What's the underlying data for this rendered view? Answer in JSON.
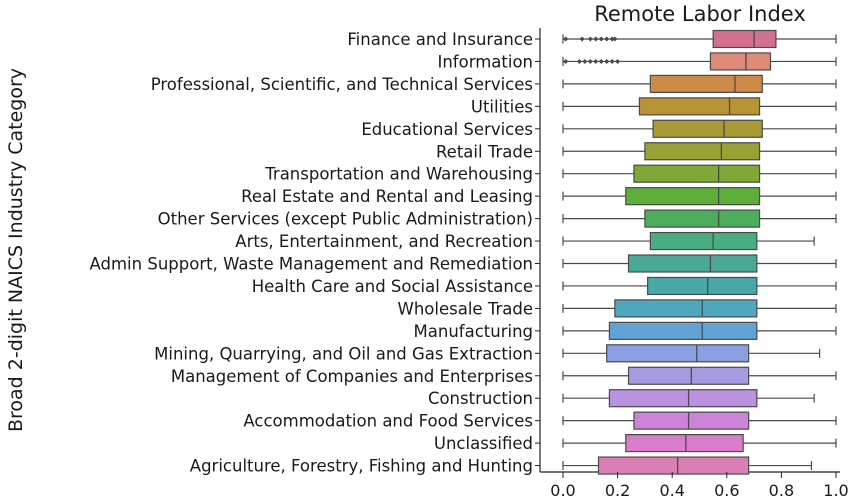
{
  "chart_data": {
    "type": "box",
    "title": "Remote Labor Index",
    "xlabel": "",
    "ylabel": "Broad 2-digit NAICS Industry  Category",
    "xlim": [
      0.0,
      1.0
    ],
    "xticks": [
      "0.0",
      "0.2",
      "0.4",
      "0.6",
      "0.8",
      "1.0"
    ],
    "grid": false,
    "orientation": "horizontal",
    "categories": [
      {
        "name": "Finance and Insurance",
        "color": "#d4708f",
        "min": 0.0,
        "q1": 0.55,
        "median": 0.7,
        "q3": 0.78,
        "max": 1.0,
        "outliers": [
          0.01,
          0.07,
          0.1,
          0.12,
          0.14,
          0.16,
          0.18,
          0.19
        ]
      },
      {
        "name": "Information",
        "color": "#dd8a79",
        "min": 0.0,
        "q1": 0.54,
        "median": 0.67,
        "q3": 0.76,
        "max": 1.0,
        "outliers": [
          0.01,
          0.06,
          0.08,
          0.1,
          0.12,
          0.14,
          0.16,
          0.18,
          0.2
        ]
      },
      {
        "name": "Professional, Scientific, and Technical Services",
        "color": "#cc8c48",
        "min": 0.0,
        "q1": 0.32,
        "median": 0.63,
        "q3": 0.73,
        "max": 1.0,
        "outliers": []
      },
      {
        "name": "Utilities",
        "color": "#b89436",
        "min": 0.0,
        "q1": 0.28,
        "median": 0.61,
        "q3": 0.72,
        "max": 1.0,
        "outliers": []
      },
      {
        "name": "Educational Services",
        "color": "#a99a35",
        "min": 0.0,
        "q1": 0.33,
        "median": 0.59,
        "q3": 0.73,
        "max": 1.0,
        "outliers": []
      },
      {
        "name": "Retail Trade",
        "color": "#98a235",
        "min": 0.0,
        "q1": 0.3,
        "median": 0.58,
        "q3": 0.72,
        "max": 1.0,
        "outliers": []
      },
      {
        "name": "Transportation and Warehousing",
        "color": "#80a836",
        "min": 0.0,
        "q1": 0.26,
        "median": 0.57,
        "q3": 0.72,
        "max": 1.0,
        "outliers": []
      },
      {
        "name": "Real Estate and Rental and Leasing",
        "color": "#5eae3a",
        "min": 0.0,
        "q1": 0.23,
        "median": 0.57,
        "q3": 0.72,
        "max": 1.0,
        "outliers": []
      },
      {
        "name": "Other Services (except Public Administration)",
        "color": "#4cae5d",
        "min": 0.0,
        "q1": 0.3,
        "median": 0.57,
        "q3": 0.72,
        "max": 1.0,
        "outliers": []
      },
      {
        "name": "Arts, Entertainment, and Recreation",
        "color": "#4aad82",
        "min": 0.0,
        "q1": 0.32,
        "median": 0.55,
        "q3": 0.71,
        "max": 0.92,
        "outliers": []
      },
      {
        "name": "Admin Support, Waste Management and Remediation",
        "color": "#4aa996",
        "min": 0.0,
        "q1": 0.24,
        "median": 0.54,
        "q3": 0.71,
        "max": 1.0,
        "outliers": []
      },
      {
        "name": "Health Care and Social Assistance",
        "color": "#4ba8a8",
        "min": 0.0,
        "q1": 0.31,
        "median": 0.53,
        "q3": 0.71,
        "max": 1.0,
        "outliers": []
      },
      {
        "name": "Wholesale Trade",
        "color": "#4ea7bd",
        "min": 0.0,
        "q1": 0.19,
        "median": 0.51,
        "q3": 0.71,
        "max": 1.0,
        "outliers": []
      },
      {
        "name": "Manufacturing",
        "color": "#61a3d6",
        "min": 0.0,
        "q1": 0.17,
        "median": 0.51,
        "q3": 0.71,
        "max": 1.0,
        "outliers": []
      },
      {
        "name": "Mining, Quarrying, and Oil and Gas Extraction",
        "color": "#8b9fe3",
        "min": 0.0,
        "q1": 0.16,
        "median": 0.49,
        "q3": 0.68,
        "max": 0.94,
        "outliers": []
      },
      {
        "name": "Management of Companies and Enterprises",
        "color": "#a69ae0",
        "min": 0.0,
        "q1": 0.24,
        "median": 0.47,
        "q3": 0.68,
        "max": 1.0,
        "outliers": []
      },
      {
        "name": "Construction",
        "color": "#bb92e0",
        "min": 0.0,
        "q1": 0.17,
        "median": 0.46,
        "q3": 0.71,
        "max": 0.92,
        "outliers": []
      },
      {
        "name": "Accommodation and Food Services",
        "color": "#cc83d8",
        "min": 0.0,
        "q1": 0.26,
        "median": 0.46,
        "q3": 0.68,
        "max": 1.0,
        "outliers": []
      },
      {
        "name": "Unclassified",
        "color": "#d77dc9",
        "min": 0.0,
        "q1": 0.23,
        "median": 0.45,
        "q3": 0.66,
        "max": 1.0,
        "outliers": []
      },
      {
        "name": "Agriculture, Forestry, Fishing and Hunting",
        "color": "#d97fb3",
        "min": 0.0,
        "q1": 0.13,
        "median": 0.42,
        "q3": 0.68,
        "max": 0.91,
        "outliers": []
      }
    ]
  }
}
